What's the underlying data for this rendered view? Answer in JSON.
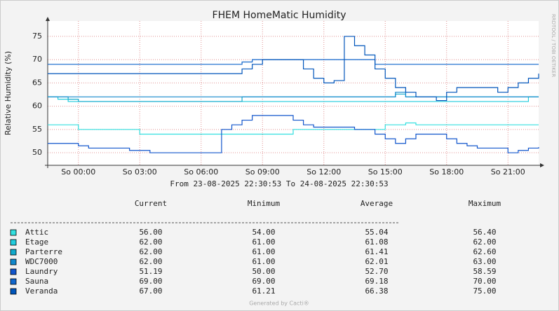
{
  "chart_data": {
    "type": "line",
    "step": true,
    "title": "FHEM HomeMatic Humidity",
    "y_label": "Relative Humidity (%)",
    "subtitle": "From 23-08-2025 22:30:53 To 24-08-2025 22:30:53",
    "x": [
      -1.5,
      -1,
      -0.5,
      0,
      0.5,
      1,
      1.5,
      2,
      2.5,
      3,
      3.5,
      4,
      4.5,
      5,
      5.5,
      6,
      6.5,
      7,
      7.5,
      8,
      8.5,
      9,
      9.5,
      10,
      10.5,
      11,
      11.5,
      12,
      12.5,
      13,
      13.5,
      14,
      14.5,
      15,
      15.5,
      16,
      16.5,
      17,
      17.5,
      18,
      18.5,
      19,
      19.5,
      20,
      20.5,
      21,
      21.5,
      22,
      22.5
    ],
    "xlim": [
      -1.5,
      22.5
    ],
    "xticks": [
      {
        "value": 0,
        "label": "So 00:00"
      },
      {
        "value": 3,
        "label": "So 03:00"
      },
      {
        "value": 6,
        "label": "So 06:00"
      },
      {
        "value": 9,
        "label": "So 09:00"
      },
      {
        "value": 12,
        "label": "So 12:00"
      },
      {
        "value": 15,
        "label": "So 15:00"
      },
      {
        "value": 18,
        "label": "So 18:00"
      },
      {
        "value": 21,
        "label": "So 21:00"
      }
    ],
    "ylim": [
      47.3,
      78.3
    ],
    "yticks": [
      50,
      55,
      60,
      65,
      70,
      75
    ],
    "grid": true,
    "series": [
      {
        "name": "Attic",
        "color": "#33e0e0",
        "values": [
          56,
          56,
          56,
          55,
          55,
          55,
          55,
          55,
          55,
          54,
          54,
          54,
          54,
          54,
          54,
          54,
          54,
          54,
          54,
          54,
          54,
          54,
          54,
          54,
          55,
          55,
          55,
          55,
          55,
          55,
          55,
          55,
          55,
          56,
          56,
          56.4,
          56,
          56,
          56,
          56,
          56,
          56,
          56,
          56,
          56,
          56,
          56,
          56,
          56
        ]
      },
      {
        "name": "Etage",
        "color": "#22ccdd",
        "values": [
          62,
          61.5,
          61,
          61,
          61,
          61,
          61,
          61,
          61,
          61,
          61,
          61,
          61,
          61,
          61,
          61,
          61,
          61,
          61,
          61,
          61,
          61,
          61,
          61,
          61,
          61,
          61,
          61,
          61,
          61,
          61,
          61,
          61,
          61,
          61,
          61,
          61,
          61,
          61,
          61,
          61,
          61,
          61,
          61,
          61,
          61,
          61,
          62,
          62
        ]
      },
      {
        "name": "Parterre",
        "color": "#11aacc",
        "values": [
          62,
          62,
          61.5,
          61,
          61,
          61,
          61,
          61,
          61,
          61,
          61,
          61,
          61,
          61,
          61,
          61,
          61,
          61,
          61,
          62,
          62,
          62,
          62,
          62,
          62,
          62,
          62,
          62,
          62,
          62,
          62,
          62,
          62,
          62,
          62.6,
          62,
          62,
          62,
          62,
          62,
          62,
          62,
          62,
          62,
          62,
          62,
          62,
          62,
          62
        ]
      },
      {
        "name": "WDC7000",
        "color": "#1188cc",
        "values": [
          62,
          62,
          62,
          62,
          62,
          62,
          62,
          62,
          62,
          62,
          62,
          62,
          62,
          62,
          62,
          62,
          62,
          62,
          62,
          62,
          62,
          62,
          62,
          62,
          62,
          62,
          62,
          62,
          62,
          62,
          62,
          62,
          62,
          62,
          63,
          62,
          62,
          62,
          62,
          62,
          62,
          62,
          62,
          62,
          62,
          62,
          62,
          62,
          62
        ]
      },
      {
        "name": "Laundry",
        "color": "#1155cc",
        "values": [
          52,
          52,
          52,
          51.5,
          51,
          51,
          51,
          51,
          50.5,
          50.5,
          50,
          50,
          50,
          50,
          50,
          50,
          50,
          55,
          56,
          57,
          58,
          58,
          58,
          58,
          57,
          56,
          55.5,
          55.5,
          55.5,
          55.5,
          55,
          55,
          54,
          53,
          52,
          53,
          54,
          54,
          54,
          53,
          52,
          51.5,
          51,
          51,
          51,
          50,
          50.5,
          51,
          51.19
        ]
      },
      {
        "name": "Sauna",
        "color": "#1166cc",
        "values": [
          69,
          69,
          69,
          69,
          69,
          69,
          69,
          69,
          69,
          69,
          69,
          69,
          69,
          69,
          69,
          69,
          69,
          69,
          69,
          69.5,
          70,
          70,
          70,
          70,
          70,
          70,
          70,
          70,
          70,
          70,
          70,
          70,
          69,
          69,
          69,
          69,
          69,
          69,
          69,
          69,
          69,
          69,
          69,
          69,
          69,
          69,
          69,
          69,
          69
        ]
      },
      {
        "name": "Veranda",
        "color": "#0055bb",
        "values": [
          67,
          67,
          67,
          67,
          67,
          67,
          67,
          67,
          67,
          67,
          67,
          67,
          67,
          67,
          67,
          67,
          67,
          67,
          67,
          68,
          69,
          70,
          70,
          70,
          70,
          68,
          66,
          65,
          65.5,
          75,
          73,
          71,
          68,
          66,
          64,
          63,
          62,
          62,
          61.21,
          63,
          64,
          64,
          64,
          64,
          63,
          64,
          65,
          66,
          67
        ]
      }
    ]
  },
  "legend_table": {
    "headers": [
      "Current",
      "Minimum",
      "Average",
      "Maximum"
    ],
    "rows": [
      [
        "56.00",
        "54.00",
        "55.04",
        "56.40"
      ],
      [
        "62.00",
        "61.00",
        "61.08",
        "62.00"
      ],
      [
        "62.00",
        "61.00",
        "61.41",
        "62.60"
      ],
      [
        "62.00",
        "61.00",
        "62.01",
        "63.00"
      ],
      [
        "51.19",
        "50.00",
        "52.70",
        "58.59"
      ],
      [
        "69.00",
        "69.00",
        "69.18",
        "70.00"
      ],
      [
        "67.00",
        "61.21",
        "66.38",
        "75.00"
      ]
    ]
  },
  "footer": "Generated by Cacti®",
  "watermark": "RRDTOOL / TOBI OETIKER"
}
